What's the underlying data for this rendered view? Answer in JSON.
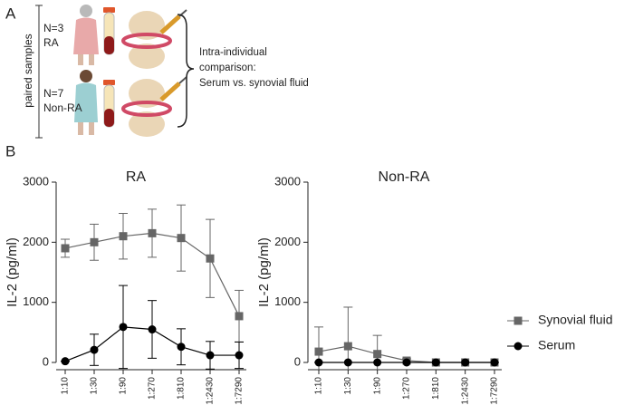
{
  "panel_labels": [
    "A",
    "B"
  ],
  "panel_a": {
    "axis_label": "paired samples",
    "groups": [
      {
        "n": "N=3",
        "label": "RA"
      },
      {
        "n": "N=7",
        "label": "Non-RA"
      }
    ],
    "comparison": [
      "Intra-individual",
      "comparison:",
      "Serum vs. synovial fluid"
    ]
  },
  "chart_data": [
    {
      "type": "line",
      "title": "RA",
      "y_label": "IL-2 (pg/ml)",
      "categories": [
        "1:10",
        "1:30",
        "1:90",
        "1:270",
        "1:810",
        "1:2430",
        "1:7290"
      ],
      "ylim": [
        0,
        3000
      ],
      "yticks": [
        0,
        1000,
        2000,
        3000
      ],
      "series": [
        {
          "color": "#666666",
          "marker": "square",
          "values": [
            1900,
            2000,
            2100,
            2150,
            2070,
            1730,
            770
          ],
          "errors": [
            150,
            300,
            380,
            400,
            550,
            650,
            430
          ]
        },
        {
          "color": "#000000",
          "marker": "circle",
          "values": [
            20,
            210,
            590,
            550,
            260,
            120,
            120
          ],
          "errors": [
            0,
            260,
            690,
            480,
            300,
            230,
            220
          ]
        }
      ]
    },
    {
      "type": "line",
      "title": "Non-RA",
      "y_label": "IL-2 (pg/ml)",
      "categories": [
        "1:10",
        "1:30",
        "1:90",
        "1:270",
        "1:810",
        "1:2430",
        "1:7290"
      ],
      "ylim": [
        0,
        3000
      ],
      "yticks": [
        0,
        1000,
        2000,
        3000
      ],
      "series": [
        {
          "name": "Synovial fluid",
          "color": "#666666",
          "marker": "square",
          "values": [
            180,
            270,
            140,
            30,
            0,
            0,
            0
          ],
          "errors": [
            410,
            650,
            310,
            30,
            0,
            0,
            0
          ]
        },
        {
          "name": "Serum",
          "color": "#000000",
          "marker": "circle",
          "values": [
            0,
            0,
            0,
            0,
            0,
            0,
            0
          ],
          "errors": [
            0,
            0,
            0,
            0,
            0,
            0,
            0
          ]
        }
      ]
    }
  ]
}
